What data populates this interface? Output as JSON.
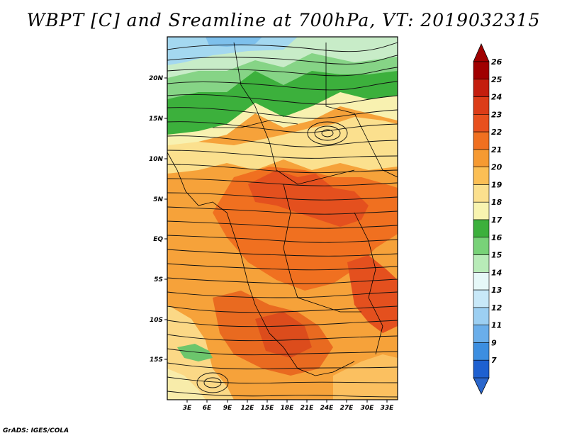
{
  "title": "WBPT [C] and Sreamline at 700hPa, VT: 2019032315",
  "credit": "GrADS: IGES/COLA",
  "map": {
    "lon_ticks": [
      "3E",
      "6E",
      "9E",
      "12E",
      "15E",
      "18E",
      "21E",
      "24E",
      "27E",
      "30E",
      "33E"
    ],
    "lat_ticks": [
      "20N",
      "15N",
      "10N",
      "5N",
      "EQ",
      "5S",
      "10S",
      "15S"
    ]
  },
  "colorbar": {
    "levels": [
      "26",
      "25",
      "24",
      "23",
      "22",
      "21",
      "20",
      "19",
      "18",
      "17",
      "16",
      "15",
      "14",
      "13",
      "12",
      "11",
      "9",
      "7"
    ],
    "colors": [
      "#a00000",
      "#c41e0e",
      "#dc3c18",
      "#e8501e",
      "#f07020",
      "#f69a32",
      "#fbbf55",
      "#fbe08e",
      "#f8f4b0",
      "#3cb03c",
      "#78d278",
      "#b8ebb8",
      "#e6f8f8",
      "#c8e8f8",
      "#9ccff2",
      "#6aaeea",
      "#3c8ee0",
      "#1e60d0"
    ],
    "top_arrow_color": "#a00000",
    "bottom_arrow_color": "#2a66cc"
  }
}
